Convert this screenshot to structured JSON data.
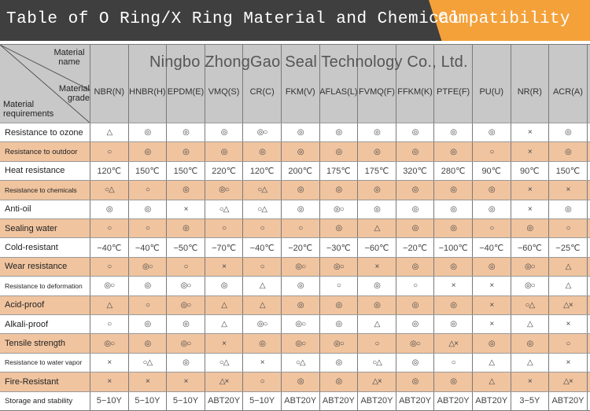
{
  "title": {
    "main": "Table of O Ring/X Ring Material and Chemical",
    "accent": "Compatibility"
  },
  "watermark": "Ningbo ZhongGao Seal Technology Co., Ltd.",
  "header": {
    "material_name": "Material name",
    "material_grade": "Material grade",
    "material_requirements": "Material requirements",
    "columns": [
      "NBR(N)",
      "HNBR(H)",
      "EPDM(E)",
      "VMQ(S)",
      "CR(C)",
      "FKM(V)",
      "AFLAS(L)",
      "FVMQ(F)",
      "FFKM(K)",
      "PTFE(F)",
      "PU(U)",
      "NR(R)",
      "ACR(A)"
    ]
  },
  "rows": [
    {
      "label": "Resistance to ozone",
      "style": "white",
      "size": "normal",
      "values": [
        "△",
        "◎",
        "◎",
        "◎",
        "◎○",
        "◎",
        "◎",
        "◎",
        "◎",
        "◎",
        "◎",
        "×",
        "◎"
      ]
    },
    {
      "label": "Resistance to outdoor",
      "style": "tan",
      "size": "small",
      "values": [
        "○",
        "◎",
        "◎",
        "◎",
        "◎",
        "◎",
        "◎",
        "◎",
        "◎",
        "◎",
        "○",
        "×",
        "◎"
      ]
    },
    {
      "label": "Heat resistance",
      "style": "white",
      "size": "normal",
      "values": [
        "120℃",
        "150℃",
        "150℃",
        "220℃",
        "120℃",
        "200℃",
        "175℃",
        "175℃",
        "320℃",
        "280℃",
        "90℃",
        "90℃",
        "150℃"
      ]
    },
    {
      "label": "Resistance to chemicals",
      "style": "tan",
      "size": "tiny",
      "values": [
        "○△",
        "○",
        "◎",
        "◎○",
        "○△",
        "◎",
        "◎",
        "◎",
        "◎",
        "◎",
        "◎",
        "×",
        "×"
      ]
    },
    {
      "label": "Anti-oil",
      "style": "white",
      "size": "normal",
      "values": [
        "◎",
        "◎",
        "×",
        "○△",
        "○△",
        "◎",
        "◎○",
        "◎",
        "◎",
        "◎",
        "◎",
        "×",
        "◎"
      ]
    },
    {
      "label": "Sealing water",
      "style": "tan",
      "size": "normal",
      "values": [
        "○",
        "○",
        "◎",
        "○",
        "○",
        "○",
        "◎",
        "△",
        "◎",
        "◎",
        "○",
        "◎",
        "○"
      ]
    },
    {
      "label": "Cold-resistant",
      "style": "white",
      "size": "normal",
      "values": [
        "−40℃",
        "−40℃",
        "−50℃",
        "−70℃",
        "−40℃",
        "−20℃",
        "−30℃",
        "−60℃",
        "−20℃",
        "−100℃",
        "−40℃",
        "−60℃",
        "−25℃"
      ]
    },
    {
      "label": "Wear resistance",
      "style": "tan",
      "size": "normal",
      "values": [
        "○",
        "◎○",
        "○",
        "×",
        "○",
        "◎○",
        "◎○",
        "×",
        "◎",
        "◎",
        "◎",
        "◎○",
        "△"
      ]
    },
    {
      "label": "Resistance to deformation",
      "style": "white",
      "size": "tiny",
      "values": [
        "◎○",
        "◎",
        "◎○",
        "◎",
        "△",
        "◎",
        "○",
        "◎",
        "○",
        "×",
        "×",
        "◎○",
        "△"
      ]
    },
    {
      "label": "Acid-proof",
      "style": "tan",
      "size": "normal",
      "values": [
        "△",
        "○",
        "◎○",
        "△",
        "△",
        "◎",
        "◎",
        "◎",
        "◎",
        "◎",
        "×",
        "○△",
        "△×"
      ]
    },
    {
      "label": "Alkali-proof",
      "style": "white",
      "size": "normal",
      "values": [
        "○",
        "◎",
        "◎",
        "△",
        "◎○",
        "◎○",
        "◎",
        "△",
        "◎",
        "◎",
        "×",
        "△",
        "×"
      ]
    },
    {
      "label": "Tensile strength",
      "style": "tan",
      "size": "normal",
      "values": [
        "◎○",
        "◎",
        "◎○",
        "×",
        "◎",
        "◎○",
        "◎○",
        "○",
        "◎○",
        "△×",
        "◎",
        "◎",
        "○"
      ]
    },
    {
      "label": "Resistance to water vapor",
      "style": "white",
      "size": "tiny",
      "values": [
        "×",
        "○△",
        "◎",
        "○△",
        "×",
        "○△",
        "◎",
        "○△",
        "◎",
        "○",
        "△",
        "△",
        "×"
      ]
    },
    {
      "label": "Fire-Resistant",
      "style": "tan",
      "size": "normal",
      "values": [
        "×",
        "×",
        "×",
        "△×",
        "○",
        "◎",
        "◎",
        "△×",
        "◎",
        "◎",
        "△",
        "×",
        "△×"
      ]
    },
    {
      "label": "Storage and stability",
      "style": "white",
      "size": "small",
      "values": [
        "5−10Y",
        "5−10Y",
        "5−10Y",
        "ABT20Y",
        "5−10Y",
        "ABT20Y",
        "ABT20Y",
        "ABT20Y",
        "ABT20Y",
        "ABT20Y",
        "ABT20Y",
        "3−5Y",
        "ABT20Y"
      ]
    }
  ]
}
